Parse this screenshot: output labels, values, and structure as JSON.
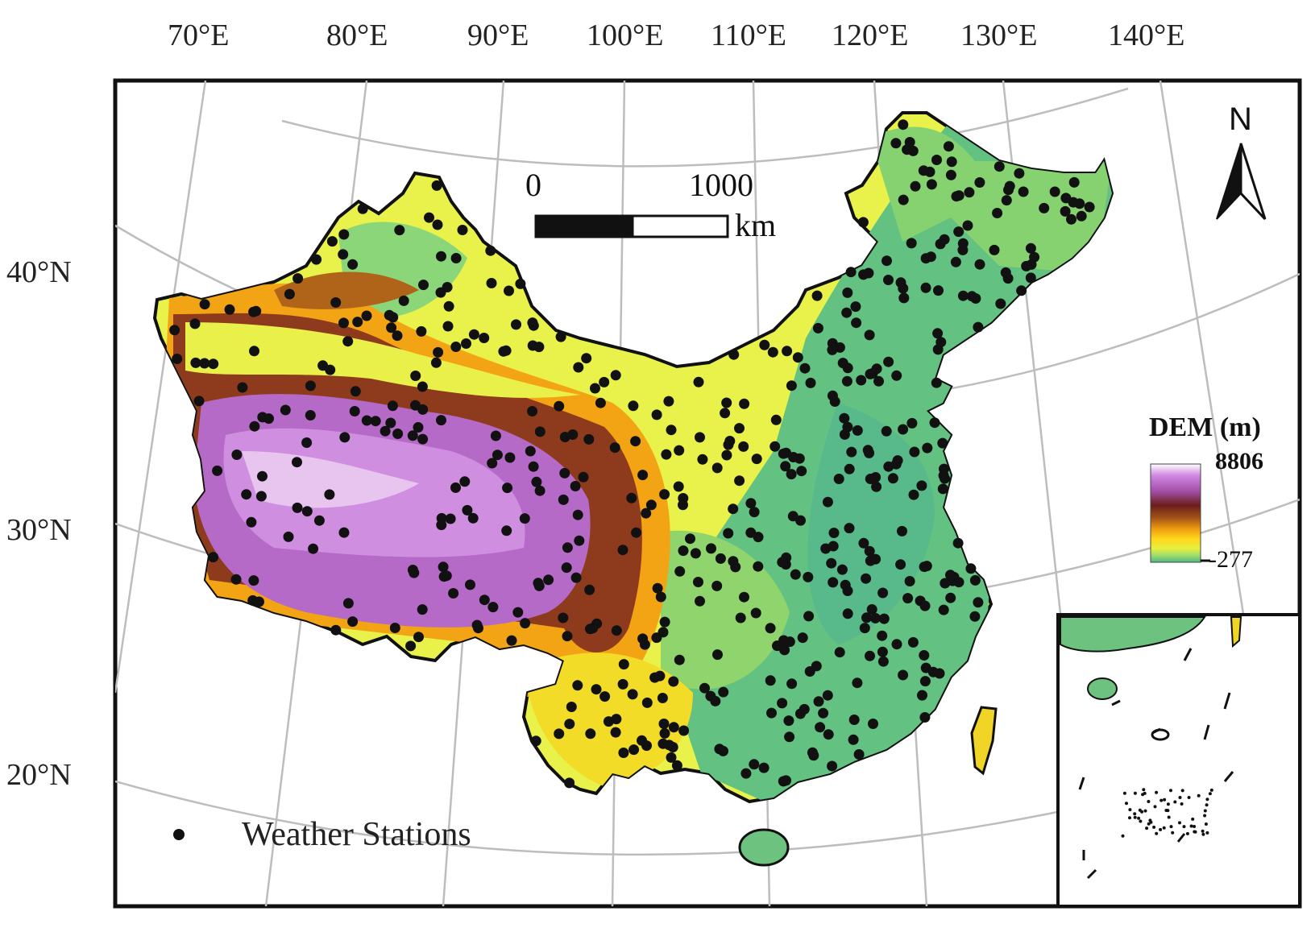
{
  "map": {
    "longitude_labels": [
      "70°E",
      "80°E",
      "90°E",
      "100°E",
      "110°E",
      "120°E",
      "130°E",
      "140°E"
    ],
    "latitude_labels": [
      "40°N",
      "30°N",
      "20°N"
    ],
    "scale_bar": {
      "start": "0",
      "end": "1000",
      "unit": "km"
    },
    "north_arrow": {
      "letter": "N"
    },
    "dem_legend": {
      "title": "DEM (m)",
      "max": "8806",
      "min": "-277",
      "colors": [
        "#ffffff",
        "#c77ad9",
        "#a24fa8",
        "#6a1c1c",
        "#9c4a12",
        "#e08a10",
        "#ffd21a",
        "#f4f23a",
        "#d2f25c",
        "#8ed873",
        "#4fb884"
      ]
    },
    "station_legend": {
      "label": "Weather Stations",
      "marker_color": "#111111"
    },
    "colors": {
      "lowland": "#5fbf82",
      "plain": "#9fd86c",
      "hill": "#e6f24a",
      "plateau_edge": "#f3c61a",
      "mountain": "#8b3a1d",
      "highland": "#b46cc6",
      "graticule": "#b8b8b8",
      "frame": "#111111"
    }
  }
}
